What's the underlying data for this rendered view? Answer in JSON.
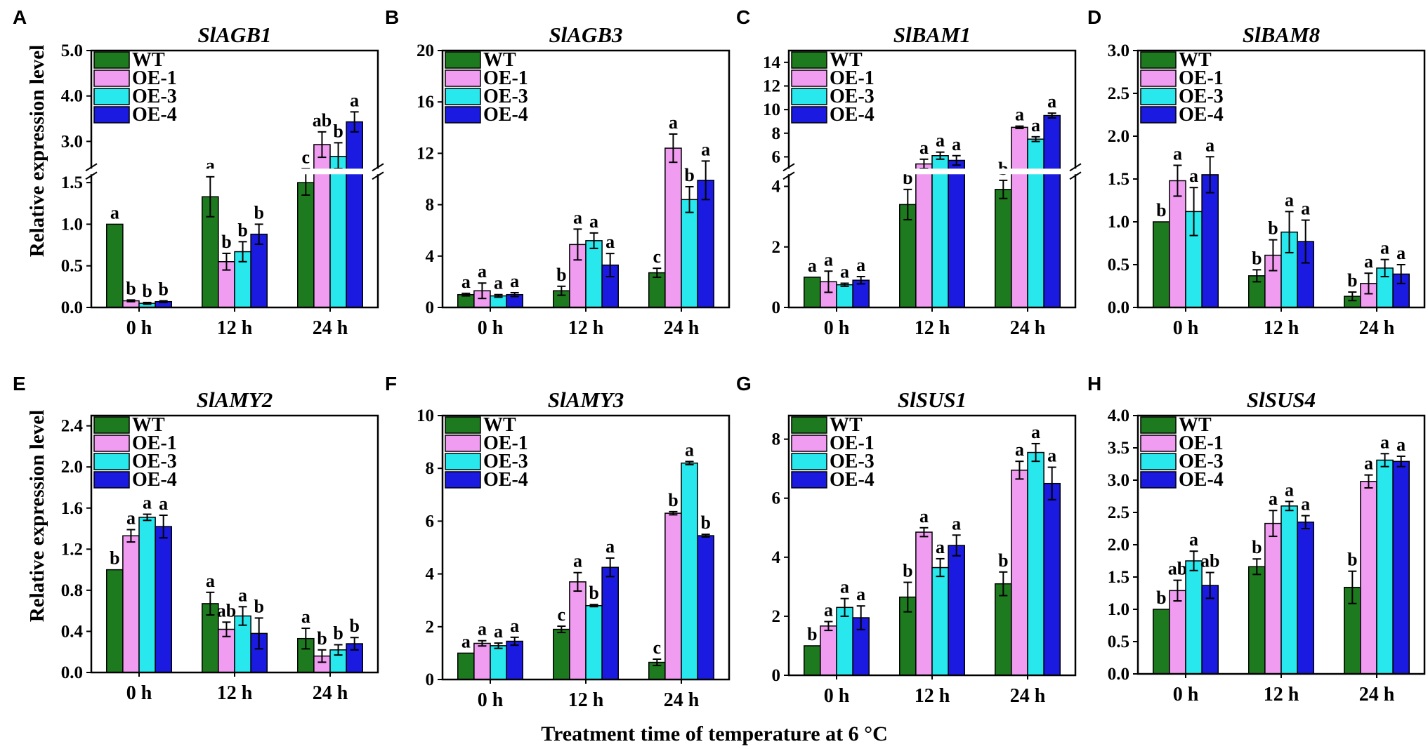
{
  "figure": {
    "ylabel": "Relative expression level",
    "xlabel": "Treatment time of temperature at 6 °C"
  },
  "chart_data": [
    {
      "type": "bar",
      "panel": "A",
      "title": "SlAGB1",
      "categories": [
        "0 h",
        "12 h",
        "24 h"
      ],
      "ylabel": "Relative expression level",
      "y_broken": true,
      "ylim_lower": [
        0,
        1.6
      ],
      "ylim_upper": [
        2.4,
        5.0
      ],
      "yticks_lower": [
        "0.0",
        "0.5",
        "1.0",
        "1.5"
      ],
      "yticks_upper": [
        "3.0",
        "4.0",
        "5.0"
      ],
      "legend_placement": "top-left",
      "colors": [
        "#1e7a1e",
        "#f09cf0",
        "#28e8ee",
        "#1a1ae0"
      ],
      "series": [
        {
          "name": "WT",
          "values": [
            1.0,
            1.33,
            1.5
          ],
          "errors": [
            0.0,
            0.24,
            0.15
          ],
          "labels": [
            "a",
            "a",
            "c"
          ]
        },
        {
          "name": "OE-1",
          "values": [
            0.08,
            0.55,
            2.93
          ],
          "errors": [
            0.01,
            0.1,
            0.28
          ],
          "labels": [
            "b",
            "b",
            "ab"
          ]
        },
        {
          "name": "OE-3",
          "values": [
            0.05,
            0.67,
            2.67
          ],
          "errors": [
            0.01,
            0.12,
            0.3
          ],
          "labels": [
            "b",
            "b",
            "b"
          ]
        },
        {
          "name": "OE-4",
          "values": [
            0.07,
            0.88,
            3.43
          ],
          "errors": [
            0.01,
            0.12,
            0.22
          ],
          "labels": [
            "b",
            "b",
            "a"
          ]
        }
      ]
    },
    {
      "type": "bar",
      "panel": "B",
      "title": "SlAGB3",
      "categories": [
        "0 h",
        "12 h",
        "24 h"
      ],
      "ylim": [
        0,
        20
      ],
      "yticks": [
        "0",
        "4",
        "8",
        "12",
        "16",
        "20"
      ],
      "legend_placement": "top-left",
      "colors": [
        "#1e7a1e",
        "#f09cf0",
        "#28e8ee",
        "#1a1ae0"
      ],
      "series": [
        {
          "name": "WT",
          "values": [
            1.0,
            1.3,
            2.7
          ],
          "errors": [
            0.1,
            0.35,
            0.35
          ],
          "labels": [
            "a",
            "b",
            "c"
          ]
        },
        {
          "name": "OE-1",
          "values": [
            1.3,
            4.9,
            12.4
          ],
          "errors": [
            0.6,
            1.2,
            1.1
          ],
          "labels": [
            "a",
            "a",
            "a"
          ]
        },
        {
          "name": "OE-3",
          "values": [
            0.9,
            5.2,
            8.4
          ],
          "errors": [
            0.1,
            0.6,
            1.0
          ],
          "labels": [
            "a",
            "a",
            "b"
          ]
        },
        {
          "name": "OE-4",
          "values": [
            1.0,
            3.3,
            9.9
          ],
          "errors": [
            0.15,
            0.9,
            1.5
          ],
          "labels": [
            "a",
            "a",
            "a"
          ]
        }
      ]
    },
    {
      "type": "bar",
      "panel": "C",
      "title": "SlBAM1",
      "categories": [
        "0 h",
        "12 h",
        "24 h"
      ],
      "y_broken": true,
      "ylim_lower": [
        0,
        4.4
      ],
      "ylim_upper": [
        5.0,
        15.0
      ],
      "yticks_lower": [
        "0",
        "2",
        "4"
      ],
      "yticks_upper": [
        "6",
        "8",
        "10",
        "12",
        "14"
      ],
      "legend_placement": "top-left",
      "colors": [
        "#1e7a1e",
        "#f09cf0",
        "#28e8ee",
        "#1a1ae0"
      ],
      "series": [
        {
          "name": "WT",
          "values": [
            1.0,
            3.4,
            3.9
          ],
          "errors": [
            0.0,
            0.5,
            0.3
          ],
          "labels": [
            "a",
            "b",
            "b"
          ]
        },
        {
          "name": "OE-1",
          "values": [
            0.85,
            5.4,
            8.5
          ],
          "errors": [
            0.35,
            0.4,
            0.1
          ],
          "labels": [
            "a",
            "a",
            "a"
          ]
        },
        {
          "name": "OE-3",
          "values": [
            0.75,
            6.1,
            7.5
          ],
          "errors": [
            0.05,
            0.3,
            0.2
          ],
          "labels": [
            "a",
            "a",
            "a"
          ]
        },
        {
          "name": "OE-4",
          "values": [
            0.9,
            5.7,
            9.5
          ],
          "errors": [
            0.12,
            0.4,
            0.2
          ],
          "labels": [
            "a",
            "a",
            "a"
          ]
        }
      ]
    },
    {
      "type": "bar",
      "panel": "D",
      "title": "SlBAM8",
      "categories": [
        "0 h",
        "12 h",
        "24 h"
      ],
      "ylim": [
        0,
        3.0
      ],
      "yticks": [
        "0.0",
        "0.5",
        "1.0",
        "1.5",
        "2.0",
        "2.5",
        "3.0"
      ],
      "legend_placement": "top-left",
      "colors": [
        "#1e7a1e",
        "#f09cf0",
        "#28e8ee",
        "#1a1ae0"
      ],
      "series": [
        {
          "name": "WT",
          "values": [
            1.0,
            0.37,
            0.13
          ],
          "errors": [
            0.0,
            0.07,
            0.05
          ],
          "labels": [
            "b",
            "b",
            "b"
          ]
        },
        {
          "name": "OE-1",
          "values": [
            1.48,
            0.61,
            0.28
          ],
          "errors": [
            0.18,
            0.18,
            0.12
          ],
          "labels": [
            "a",
            "b",
            "a"
          ]
        },
        {
          "name": "OE-3",
          "values": [
            1.12,
            0.88,
            0.46
          ],
          "errors": [
            0.28,
            0.24,
            0.1
          ],
          "labels": [
            "a",
            "a",
            "a"
          ]
        },
        {
          "name": "OE-4",
          "values": [
            1.55,
            0.77,
            0.39
          ],
          "errors": [
            0.21,
            0.25,
            0.11
          ],
          "labels": [
            "a",
            "a",
            "a"
          ]
        }
      ]
    },
    {
      "type": "bar",
      "panel": "E",
      "title": "SlAMY2",
      "categories": [
        "0 h",
        "12 h",
        "24 h"
      ],
      "ylim": [
        0,
        2.5
      ],
      "yticks": [
        "0.0",
        "0.4",
        "0.8",
        "1.2",
        "1.6",
        "2.0",
        "2.4"
      ],
      "legend_placement": "top-left",
      "colors": [
        "#1e7a1e",
        "#f09cf0",
        "#28e8ee",
        "#1a1ae0"
      ],
      "series": [
        {
          "name": "WT",
          "values": [
            1.0,
            0.67,
            0.33
          ],
          "errors": [
            0.0,
            0.11,
            0.1
          ],
          "labels": [
            "b",
            "a",
            "a"
          ]
        },
        {
          "name": "OE-1",
          "values": [
            1.33,
            0.42,
            0.16
          ],
          "errors": [
            0.06,
            0.07,
            0.06
          ],
          "labels": [
            "a",
            "ab",
            "b"
          ]
        },
        {
          "name": "OE-3",
          "values": [
            1.51,
            0.55,
            0.22
          ],
          "errors": [
            0.03,
            0.09,
            0.05
          ],
          "labels": [
            "a",
            "a",
            "b"
          ]
        },
        {
          "name": "OE-4",
          "values": [
            1.42,
            0.38,
            0.28
          ],
          "errors": [
            0.11,
            0.15,
            0.06
          ],
          "labels": [
            "a",
            "b",
            "b"
          ]
        }
      ]
    },
    {
      "type": "bar",
      "panel": "F",
      "title": "SlAMY3",
      "categories": [
        "0 h",
        "12 h",
        "24 h"
      ],
      "ylim": [
        0,
        10
      ],
      "yticks": [
        "0",
        "2",
        "4",
        "6",
        "8",
        "10"
      ],
      "legend_placement": "top-left",
      "colors": [
        "#1e7a1e",
        "#f09cf0",
        "#28e8ee",
        "#1a1ae0"
      ],
      "series": [
        {
          "name": "WT",
          "values": [
            1.0,
            1.9,
            0.65
          ],
          "errors": [
            0.0,
            0.12,
            0.12
          ],
          "labels": [
            "a",
            "c",
            "c"
          ]
        },
        {
          "name": "OE-1",
          "values": [
            1.37,
            3.7,
            6.3
          ],
          "errors": [
            0.1,
            0.35,
            0.06
          ],
          "labels": [
            "a",
            "a",
            "b"
          ]
        },
        {
          "name": "OE-3",
          "values": [
            1.28,
            2.8,
            8.2
          ],
          "errors": [
            0.1,
            0.04,
            0.06
          ],
          "labels": [
            "a",
            "b",
            "a"
          ]
        },
        {
          "name": "OE-4",
          "values": [
            1.45,
            4.25,
            5.45
          ],
          "errors": [
            0.15,
            0.35,
            0.05
          ],
          "labels": [
            "a",
            "a",
            "b"
          ]
        }
      ]
    },
    {
      "type": "bar",
      "panel": "G",
      "title": "SlSUS1",
      "categories": [
        "0 h",
        "12 h",
        "24 h"
      ],
      "ylim": [
        0,
        8.8
      ],
      "yticks": [
        "0",
        "2",
        "4",
        "6",
        "8"
      ],
      "legend_placement": "top-left",
      "colors": [
        "#1e7a1e",
        "#f09cf0",
        "#28e8ee",
        "#1a1ae0"
      ],
      "series": [
        {
          "name": "WT",
          "values": [
            1.0,
            2.65,
            3.1
          ],
          "errors": [
            0.0,
            0.5,
            0.4
          ],
          "labels": [
            "b",
            "b",
            "b"
          ]
        },
        {
          "name": "OE-1",
          "values": [
            1.67,
            4.85,
            6.95
          ],
          "errors": [
            0.15,
            0.15,
            0.3
          ],
          "labels": [
            "a",
            "a",
            "a"
          ]
        },
        {
          "name": "OE-3",
          "values": [
            2.3,
            3.65,
            7.55
          ],
          "errors": [
            0.3,
            0.3,
            0.3
          ],
          "labels": [
            "a",
            "a",
            "a"
          ]
        },
        {
          "name": "OE-4",
          "values": [
            1.95,
            4.4,
            6.5
          ],
          "errors": [
            0.4,
            0.35,
            0.55
          ],
          "labels": [
            "a",
            "a",
            "a"
          ]
        }
      ]
    },
    {
      "type": "bar",
      "panel": "H",
      "title": "SlSUS4",
      "categories": [
        "0 h",
        "12 h",
        "24 h"
      ],
      "ylim": [
        0,
        4.0
      ],
      "yticks": [
        "0.0",
        "0.5",
        "1.0",
        "1.5",
        "2.0",
        "2.5",
        "3.0",
        "3.5",
        "4.0"
      ],
      "legend_placement": "top-left",
      "colors": [
        "#1e7a1e",
        "#f09cf0",
        "#28e8ee",
        "#1a1ae0"
      ],
      "series": [
        {
          "name": "WT",
          "values": [
            1.0,
            1.66,
            1.34
          ],
          "errors": [
            0.0,
            0.12,
            0.25
          ],
          "labels": [
            "b",
            "b",
            "b"
          ]
        },
        {
          "name": "OE-1",
          "values": [
            1.29,
            2.33,
            2.98
          ],
          "errors": [
            0.16,
            0.2,
            0.1
          ],
          "labels": [
            "ab",
            "a",
            "a"
          ]
        },
        {
          "name": "OE-3",
          "values": [
            1.75,
            2.6,
            3.31
          ],
          "errors": [
            0.15,
            0.07,
            0.1
          ],
          "labels": [
            "a",
            "a",
            "a"
          ]
        },
        {
          "name": "OE-4",
          "values": [
            1.37,
            2.35,
            3.29
          ],
          "errors": [
            0.2,
            0.1,
            0.08
          ],
          "labels": [
            "ab",
            "a",
            "a"
          ]
        }
      ]
    }
  ]
}
